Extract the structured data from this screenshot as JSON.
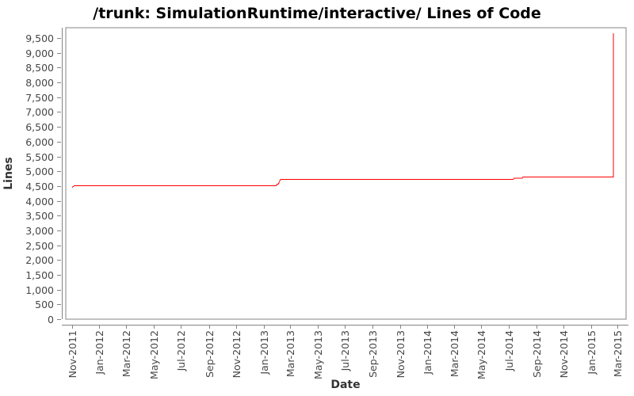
{
  "colors": {
    "line": "#ff0000",
    "axis": "#848484",
    "tick_label": "#464646",
    "axis_title": "#333333",
    "title": "#000000",
    "background": "#ffffff"
  },
  "chart_data": {
    "type": "line",
    "title": "/trunk: SimulationRuntime/interactive/ Lines of Code",
    "xlabel": "Date",
    "ylabel": "Lines",
    "grid": false,
    "legend": false,
    "x_domain": [
      "2011-10-18",
      "2015-03-20"
    ],
    "ylim": [
      0,
      9850
    ],
    "y_ticks": [
      0,
      500,
      1000,
      1500,
      2000,
      2500,
      3000,
      3500,
      4000,
      4500,
      5000,
      5500,
      6000,
      6500,
      7000,
      7500,
      8000,
      8500,
      9000,
      9500
    ],
    "y_tick_labels": [
      "0",
      "500",
      "1,000",
      "1,500",
      "2,000",
      "2,500",
      "3,000",
      "3,500",
      "4,000",
      "4,500",
      "5,000",
      "5,500",
      "6,000",
      "6,500",
      "7,000",
      "7,500",
      "8,000",
      "8,500",
      "9,000",
      "9,500"
    ],
    "x_ticks": [
      {
        "label": "Nov-2011",
        "date": "2011-11-01"
      },
      {
        "label": "Jan-2012",
        "date": "2012-01-01"
      },
      {
        "label": "Mar-2012",
        "date": "2012-03-01"
      },
      {
        "label": "May-2012",
        "date": "2012-05-01"
      },
      {
        "label": "Jul-2012",
        "date": "2012-07-01"
      },
      {
        "label": "Sep-2012",
        "date": "2012-09-01"
      },
      {
        "label": "Nov-2012",
        "date": "2012-11-01"
      },
      {
        "label": "Jan-2013",
        "date": "2013-01-01"
      },
      {
        "label": "Mar-2013",
        "date": "2013-03-01"
      },
      {
        "label": "May-2013",
        "date": "2013-05-01"
      },
      {
        "label": "Jul-2013",
        "date": "2013-07-01"
      },
      {
        "label": "Sep-2013",
        "date": "2013-09-01"
      },
      {
        "label": "Nov-2013",
        "date": "2013-11-01"
      },
      {
        "label": "Jan-2014",
        "date": "2014-01-01"
      },
      {
        "label": "Mar-2014",
        "date": "2014-03-01"
      },
      {
        "label": "May-2014",
        "date": "2014-05-01"
      },
      {
        "label": "Jul-2014",
        "date": "2014-07-01"
      },
      {
        "label": "Sep-2014",
        "date": "2014-09-01"
      },
      {
        "label": "Nov-2014",
        "date": "2014-11-01"
      },
      {
        "label": "Jan-2015",
        "date": "2015-01-01"
      },
      {
        "label": "Mar-2015",
        "date": "2015-03-01"
      }
    ],
    "series": [
      {
        "name": "lines-of-code",
        "color": "#ff0000",
        "points": [
          [
            "2011-11-01",
            4455
          ],
          [
            "2011-11-06",
            4510
          ],
          [
            "2013-01-29",
            4510
          ],
          [
            "2013-01-31",
            4560
          ],
          [
            "2013-02-03",
            4565
          ],
          [
            "2013-02-05",
            4640
          ],
          [
            "2013-02-08",
            4725
          ],
          [
            "2014-07-11",
            4725
          ],
          [
            "2014-07-13",
            4760
          ],
          [
            "2014-07-31",
            4760
          ],
          [
            "2014-08-02",
            4800
          ],
          [
            "2015-02-20",
            4800
          ],
          [
            "2015-02-20",
            9660
          ]
        ]
      }
    ]
  }
}
